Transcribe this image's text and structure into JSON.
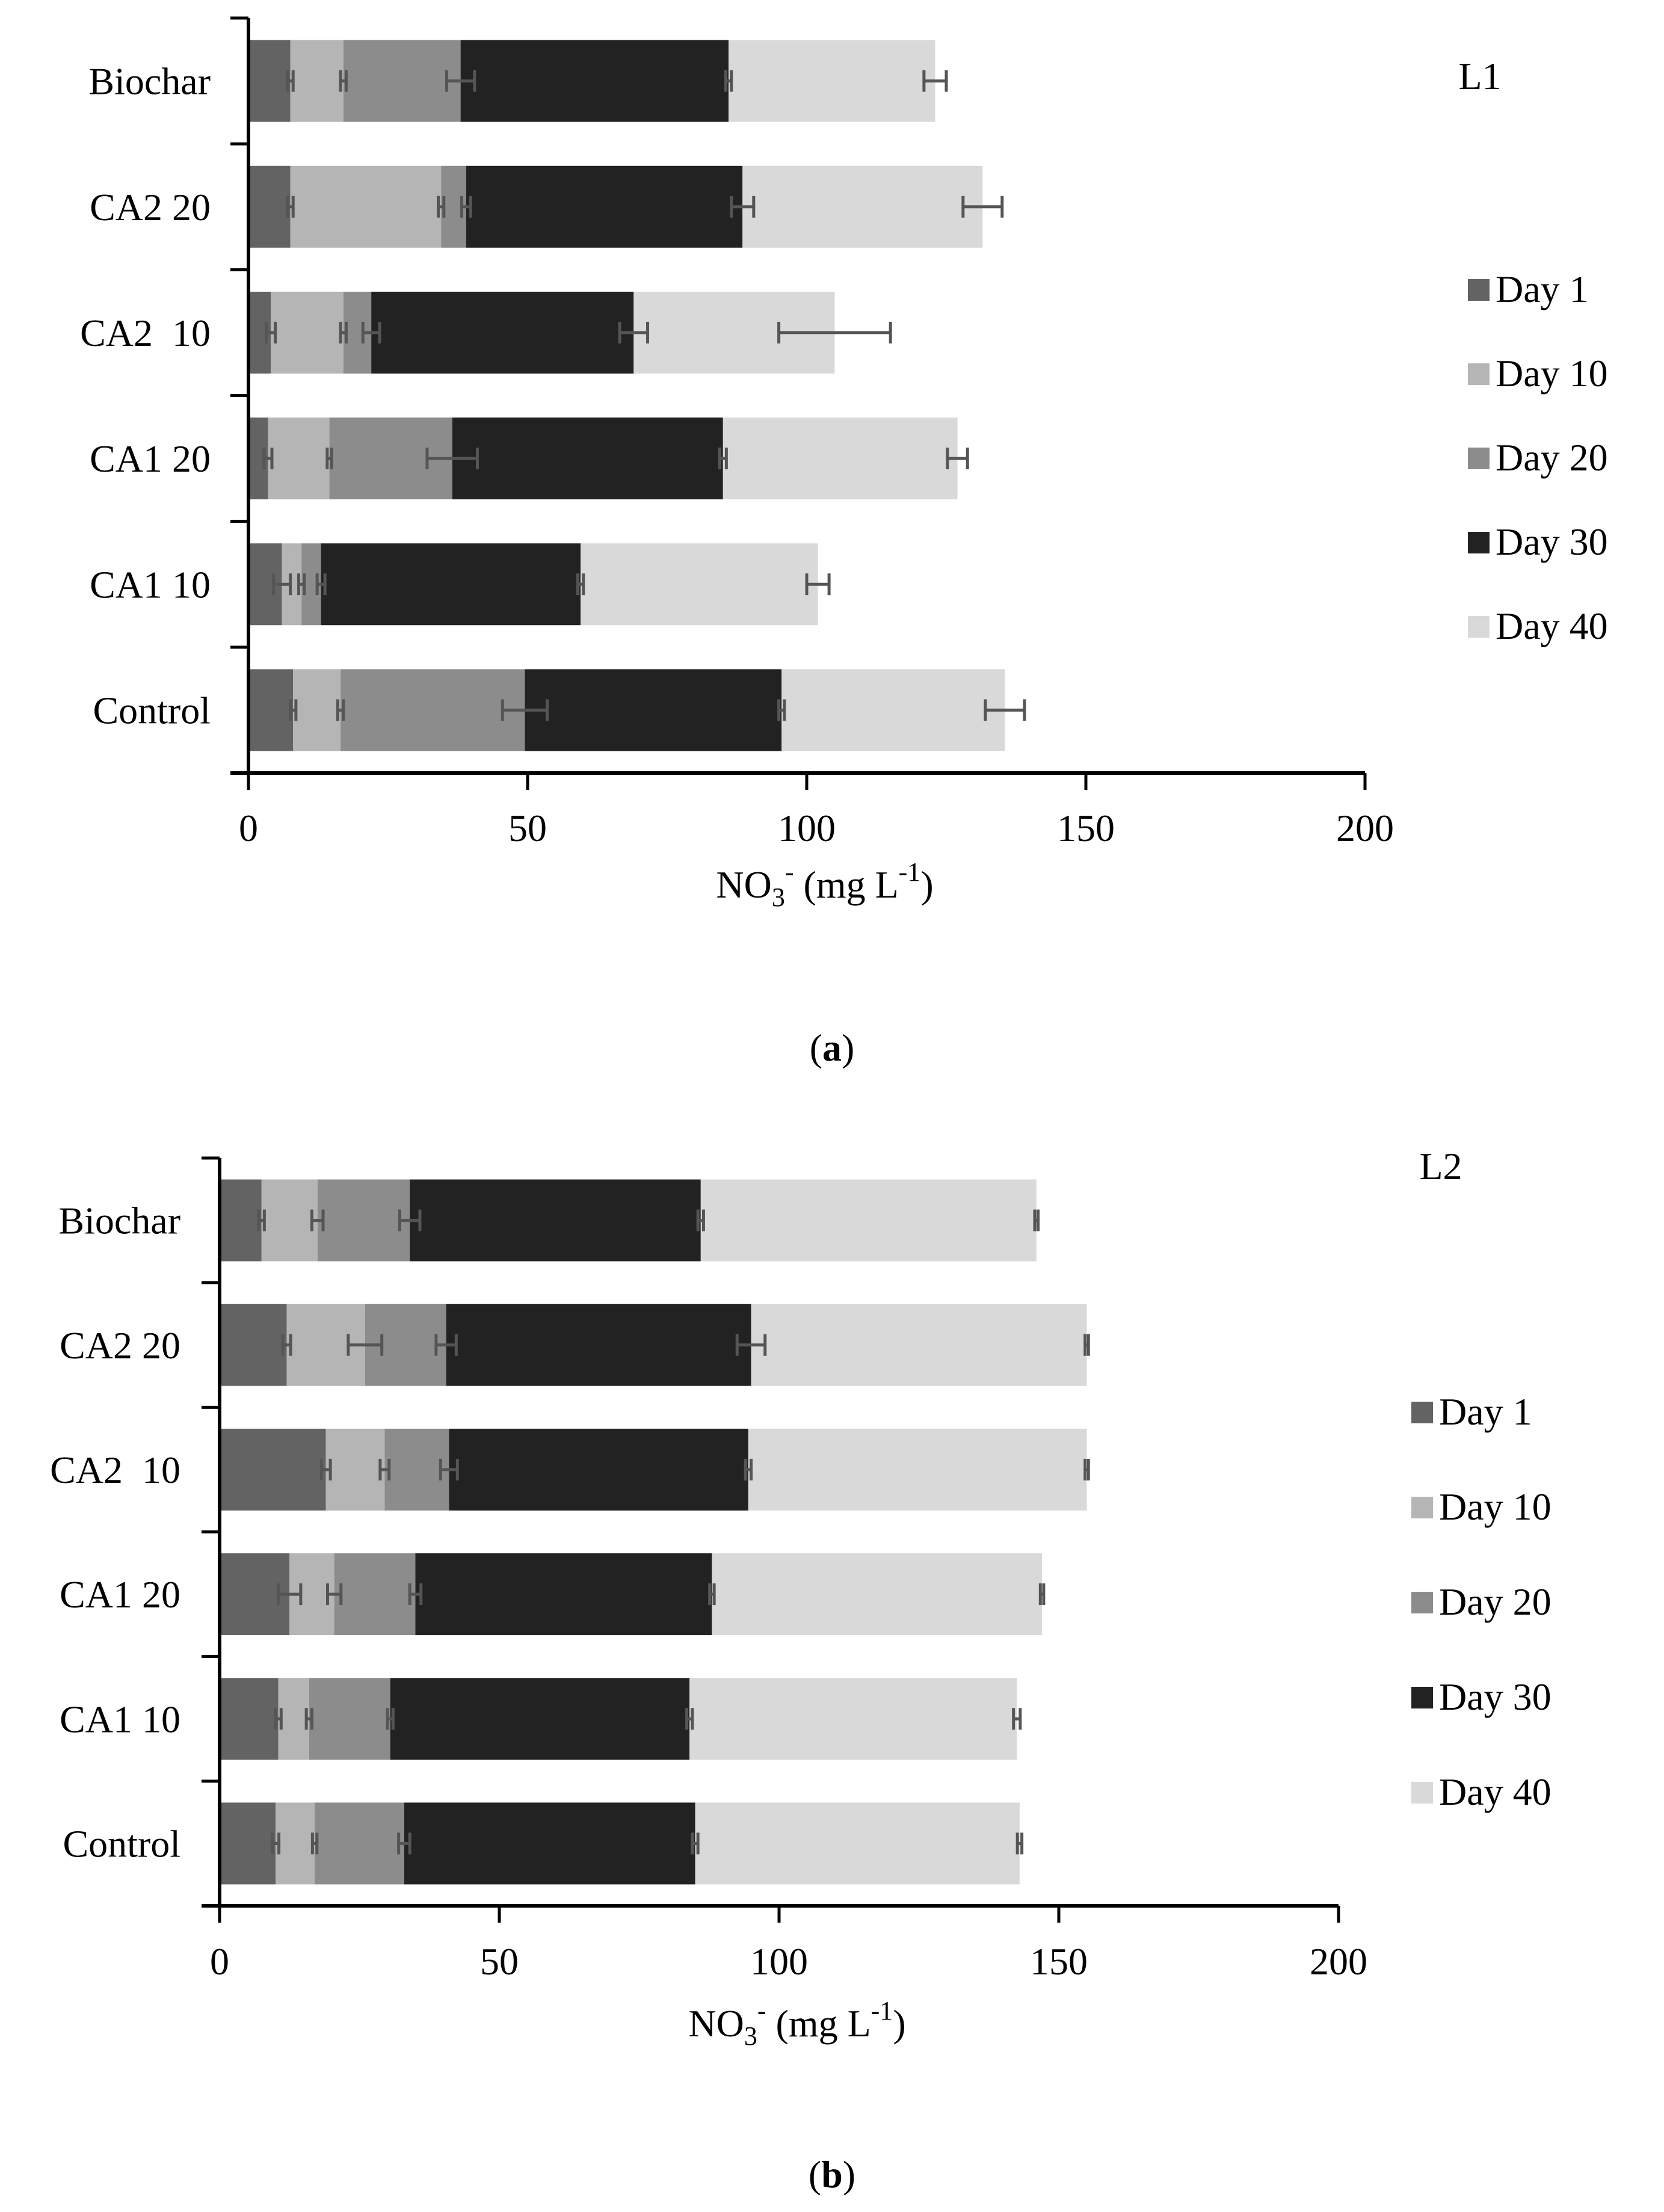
{
  "figure_labels": [
    {
      "open": "(",
      "letter": "a",
      "close": ")"
    },
    {
      "open": "(",
      "letter": "b",
      "close": ")"
    }
  ],
  "legend": [
    "Day 1",
    "Day 10",
    "Day 20",
    "Day 30",
    "Day 40"
  ],
  "colors": {
    "Day 1": "#636363",
    "Day 10": "#b5b5b5",
    "Day 20": "#8c8c8c",
    "Day 30": "#222222",
    "Day 40": "#d9d9d9",
    "error_bar": "#555555",
    "axis": "#000000"
  },
  "chart_data": [
    {
      "type": "bar",
      "orientation": "horizontal",
      "stacked": true,
      "title": "L1",
      "xlabel": "NO3- (mg L-1)",
      "xlabel_parts": {
        "main": "NO",
        "sub": "3",
        "sup": "-",
        "mid": " (mg L",
        "sup2": "-1",
        "end": ")"
      },
      "xlim": [
        0,
        200
      ],
      "xticks": [
        0,
        50,
        100,
        150,
        200
      ],
      "categories": [
        "Biochar",
        "CA2 20",
        "CA2  10",
        "CA1 20",
        "CA1 10",
        "Control"
      ],
      "series": [
        {
          "name": "Day 1",
          "values": [
            7.5,
            7.5,
            4,
            3.5,
            6,
            8
          ],
          "errors": [
            0.5,
            0.5,
            0.8,
            0.7,
            1.5,
            0.5
          ]
        },
        {
          "name": "Day 10",
          "values": [
            9.5,
            27,
            13,
            11,
            3.5,
            8.5
          ],
          "errors": [
            0.5,
            0.5,
            0.5,
            0.4,
            0.5,
            0.5
          ]
        },
        {
          "name": "Day 20",
          "values": [
            21,
            4.5,
            5,
            22,
            3.5,
            33
          ],
          "errors": [
            2.5,
            0.8,
            1.5,
            4.5,
            0.7,
            4
          ]
        },
        {
          "name": "Day 30",
          "values": [
            48,
            49.5,
            47,
            48.5,
            46.5,
            46
          ],
          "errors": [
            0.5,
            2,
            2.5,
            0.6,
            0.5,
            0.5
          ]
        },
        {
          "name": "Day 40",
          "values": [
            37,
            43,
            36,
            42,
            42.5,
            40
          ],
          "errors": [
            2,
            3.5,
            10,
            1.8,
            2,
            3.5
          ]
        }
      ]
    },
    {
      "type": "bar",
      "orientation": "horizontal",
      "stacked": true,
      "title": "L2",
      "xlabel": "NO3- (mg L-1)",
      "xlabel_parts": {
        "main": "NO",
        "sub": "3",
        "sup": "-",
        "mid": " (mg L",
        "sup2": "-1",
        "end": ")"
      },
      "xlim": [
        0,
        200
      ],
      "xticks": [
        0,
        50,
        100,
        150,
        200
      ],
      "categories": [
        "Biochar",
        "CA2 20",
        "CA2  10",
        "CA1 20",
        "CA1 10",
        "Control"
      ],
      "series": [
        {
          "name": "Day 1",
          "values": [
            7.5,
            12,
            19,
            12.5,
            10.5,
            10
          ],
          "errors": [
            0.5,
            0.7,
            0.8,
            2,
            0.5,
            0.6
          ]
        },
        {
          "name": "Day 10",
          "values": [
            10,
            14,
            10.5,
            8,
            5.5,
            7
          ],
          "errors": [
            1,
            3,
            0.8,
            1.2,
            0.5,
            0.4
          ]
        },
        {
          "name": "Day 20",
          "values": [
            16.5,
            14.5,
            11.5,
            14.5,
            14.5,
            16
          ],
          "errors": [
            1.8,
            1.8,
            1.5,
            1,
            0.5,
            1
          ]
        },
        {
          "name": "Day 30",
          "values": [
            52,
            54.5,
            53.5,
            53,
            53.5,
            52
          ],
          "errors": [
            0.5,
            2.5,
            0.5,
            0.4,
            0.5,
            0.5
          ]
        },
        {
          "name": "Day 40",
          "values": [
            60,
            60,
            60.5,
            59,
            58.5,
            58
          ],
          "errors": [
            0.3,
            0.3,
            0.3,
            0.3,
            0.6,
            0.4
          ]
        }
      ]
    }
  ]
}
